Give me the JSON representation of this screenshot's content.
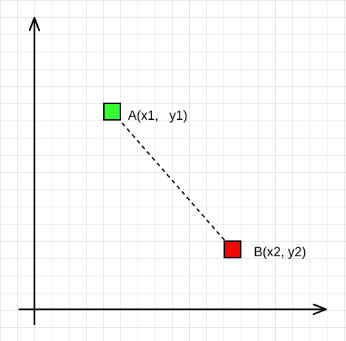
{
  "diagram": {
    "background": "#ffffff",
    "grid_color": "#e6e6e6",
    "points": [
      {
        "id": "a",
        "label": "A(x1,   y1)",
        "fill": "#33ff33"
      },
      {
        "id": "b",
        "label": "B(x2, y2)",
        "fill": "#ff0000"
      }
    ]
  }
}
